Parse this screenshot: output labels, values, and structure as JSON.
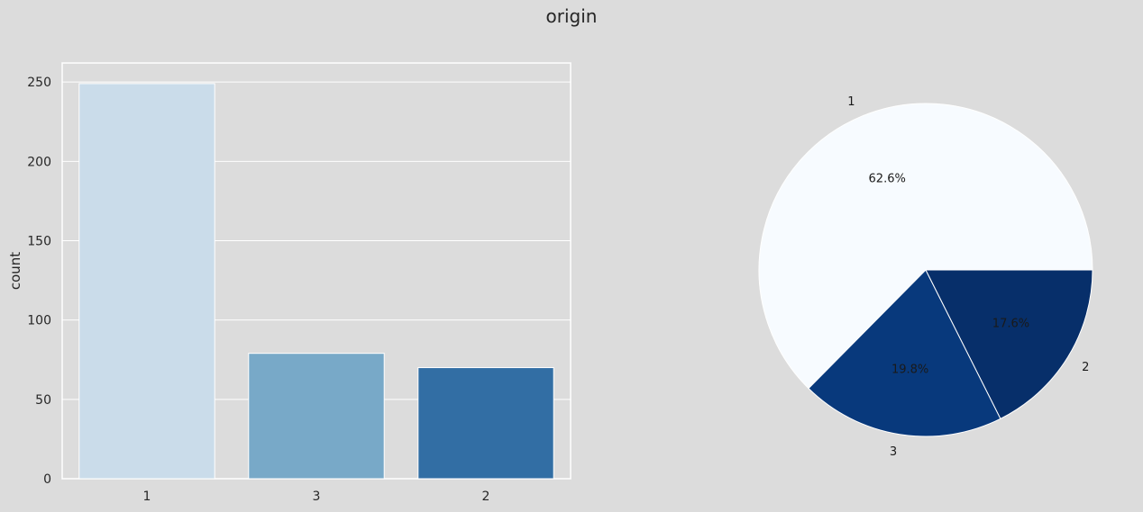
{
  "figure": {
    "title": "origin"
  },
  "chart_data": [
    {
      "type": "bar",
      "categories": [
        "1",
        "3",
        "2"
      ],
      "values": [
        249,
        79,
        70
      ],
      "colors": [
        "#cadcea",
        "#78a9c8",
        "#326ea4"
      ],
      "xlabel": "",
      "ylabel": "count",
      "ylim": [
        0,
        262
      ],
      "yticks": [
        0,
        50,
        100,
        150,
        200,
        250
      ],
      "grid": true
    },
    {
      "type": "pie",
      "labels": [
        "1",
        "3",
        "2"
      ],
      "values": [
        62.6,
        19.8,
        17.6
      ],
      "pct_labels": [
        "62.6%",
        "19.8%",
        "17.6%"
      ],
      "colors": [
        "#f7fbff",
        "#08397c",
        "#072f6a"
      ]
    }
  ],
  "colors": {
    "background": "#dcdcdc",
    "grid": "#ffffff",
    "text": "#262626"
  }
}
